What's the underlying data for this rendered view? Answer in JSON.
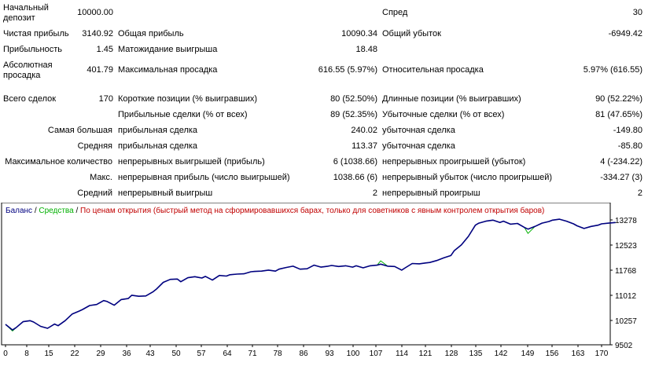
{
  "report": {
    "rows": [
      {
        "c1_label": "Начальный\nдепозит",
        "c1_value": "10000.00",
        "c2_label": "",
        "c2_value": "",
        "c3_label": "Спред",
        "c3_value": "30"
      },
      {
        "c1_label": "Чистая прибыль",
        "c1_value": "3140.92",
        "c2_label": "Общая прибыль",
        "c2_value": "10090.34",
        "c3_label": "Общий убыток",
        "c3_value": "-6949.42"
      },
      {
        "c1_label": "Прибыльность",
        "c1_value": "1.45",
        "c2_label": "Матожидание выигрыша",
        "c2_value": "18.48",
        "c3_label": "",
        "c3_value": ""
      },
      {
        "c1_label": "Абсолютная\nпросадка",
        "c1_value": "401.79",
        "c2_label": "Максимальная просадка",
        "c2_value": "616.55 (5.97%)",
        "c3_label": "Относительная просадка",
        "c3_value": "5.97% (616.55)"
      },
      {
        "c1_label": "Всего сделок",
        "c1_value": "170",
        "c2_label": "Короткие позиции (% выигравших)",
        "c2_value": "80 (52.50%)",
        "c3_label": "Длинные позиции (% выигравших)",
        "c3_value": "90 (52.22%)"
      },
      {
        "c1_label": "",
        "c1_value": "",
        "c2_label": "Прибыльные сделки (% от всех)",
        "c2_value": "89 (52.35%)",
        "c3_label": "Убыточные сделки (% от всех)",
        "c3_value": "81 (47.65%)"
      },
      {
        "c1_label": "Самая большая",
        "c1_value": "",
        "c2_label": "прибыльная сделка",
        "c2_value": "240.02",
        "c3_label": "убыточная сделка",
        "c3_value": "-149.80"
      },
      {
        "c1_label": "Средняя",
        "c1_value": "",
        "c2_label": "прибыльная сделка",
        "c2_value": "113.37",
        "c3_label": "убыточная сделка",
        "c3_value": "-85.80"
      },
      {
        "c1_label": "Максимальное количество",
        "c1_value": "",
        "c2_label": "непрерывных выигрышей (прибыль)",
        "c2_value": "6 (1038.66)",
        "c3_label": "непрерывных проигрышей (убыток)",
        "c3_value": "4 (-234.22)"
      },
      {
        "c1_label": "Макс.",
        "c1_value": "",
        "c2_label": "непрерывная прибыль (число выигрышей)",
        "c2_value": "1038.66 (6)",
        "c3_label": "непрерывный убыток (число проигрышей)",
        "c3_value": "-334.27 (3)"
      },
      {
        "c1_label": "Средний",
        "c1_value": "",
        "c2_label": "непрерывный выигрыш",
        "c2_value": "2",
        "c3_label": "непрерывный проигрыш",
        "c3_value": "2"
      }
    ]
  },
  "chart_legend": {
    "balance": "Баланс",
    "sep1": " / ",
    "equity": "Средства",
    "sep2": " / ",
    "method": "По ценам открытия (быстрый метод на сформировавшихся барах, только для советников с явным контролем открытия баров)"
  },
  "colors": {
    "balance": "#000080",
    "equity": "#00b000",
    "method": "#c00000",
    "axis": "#000000"
  },
  "chart_data": {
    "type": "line",
    "x_ticks": [
      "0",
      "8",
      "15",
      "22",
      "29",
      "36",
      "43",
      "50",
      "57",
      "64",
      "71",
      "78",
      "86",
      "93",
      "100",
      "107",
      "114",
      "121",
      "128",
      "135",
      "142",
      "149",
      "156",
      "163",
      "170"
    ],
    "y_ticks": [
      "13278",
      "12523",
      "11768",
      "11012",
      "10257",
      "9502"
    ],
    "ylim": [
      9502,
      13278
    ],
    "xlim": [
      0,
      176
    ],
    "series": [
      {
        "name": "Баланс",
        "x": [
          0,
          2,
          3,
          5,
          7,
          8,
          10,
          12,
          14,
          15,
          17,
          19,
          21,
          22,
          24,
          26,
          28,
          29,
          31,
          33,
          35,
          36,
          38,
          40,
          42,
          43,
          45,
          47,
          49,
          50,
          52,
          54,
          56,
          57,
          59,
          61,
          63,
          64,
          66,
          68,
          70,
          71,
          73,
          75,
          77,
          78,
          80,
          82,
          84,
          86,
          88,
          90,
          92,
          93,
          95,
          97,
          99,
          100,
          102,
          104,
          106,
          107,
          109,
          111,
          113,
          114,
          116,
          118,
          120,
          121,
          123,
          125,
          127,
          128,
          130,
          132,
          134,
          135,
          137,
          139,
          141,
          142,
          144,
          146,
          148,
          149,
          151,
          153,
          155,
          156,
          158,
          160,
          162,
          163,
          165,
          167,
          169,
          170,
          172,
          174
        ],
        "y": [
          10120,
          9950,
          10020,
          10200,
          10230,
          10190,
          10060,
          10000,
          10130,
          10080,
          10230,
          10430,
          10520,
          10570,
          10690,
          10720,
          10840,
          10810,
          10700,
          10870,
          10900,
          11000,
          10970,
          10980,
          11100,
          11180,
          11390,
          11480,
          11490,
          11410,
          11530,
          11560,
          11520,
          11570,
          11460,
          11600,
          11580,
          11620,
          11640,
          11650,
          11710,
          11720,
          11730,
          11760,
          11730,
          11790,
          11840,
          11880,
          11790,
          11800,
          11910,
          11850,
          11880,
          11900,
          11870,
          11890,
          11850,
          11890,
          11830,
          11890,
          11910,
          11940,
          11880,
          11870,
          11760,
          11830,
          11960,
          11950,
          11980,
          11990,
          12050,
          12130,
          12200,
          12350,
          12520,
          12780,
          13120,
          13180,
          13240,
          13270,
          13200,
          13240,
          13150,
          13170,
          13050,
          13000,
          13080,
          13180,
          13230,
          13270,
          13300,
          13240,
          13160,
          13100,
          13020,
          13080,
          13120,
          13160,
          13180,
          13200
        ]
      },
      {
        "name": "Средства",
        "x": [
          0,
          2,
          3,
          5,
          7,
          8,
          10,
          12,
          14,
          15,
          17,
          19,
          21,
          22,
          24,
          26,
          28,
          29,
          31,
          33,
          35,
          36,
          38,
          40,
          42,
          43,
          45,
          47,
          49,
          50,
          52,
          54,
          56,
          57,
          59,
          61,
          63,
          64,
          66,
          68,
          70,
          71,
          73,
          75,
          77,
          78,
          80,
          82,
          84,
          86,
          88,
          90,
          92,
          93,
          95,
          97,
          99,
          100,
          102,
          104,
          106,
          107,
          109,
          111,
          113,
          114,
          116,
          118,
          120,
          121,
          123,
          125,
          127,
          128,
          130,
          132,
          134,
          135,
          137,
          139,
          141,
          142,
          144,
          146,
          148,
          149,
          151,
          153,
          155,
          156,
          158,
          160,
          162,
          163,
          165,
          167,
          169,
          170,
          172,
          174
        ],
        "y": [
          10120,
          9920,
          10020,
          10200,
          10230,
          10190,
          10060,
          10000,
          10130,
          10080,
          10230,
          10430,
          10520,
          10570,
          10690,
          10720,
          10840,
          10810,
          10700,
          10870,
          10900,
          11000,
          10970,
          10980,
          11100,
          11180,
          11390,
          11480,
          11490,
          11410,
          11530,
          11560,
          11520,
          11570,
          11460,
          11600,
          11580,
          11620,
          11640,
          11650,
          11710,
          11720,
          11730,
          11760,
          11730,
          11790,
          11840,
          11880,
          11790,
          11800,
          11910,
          11850,
          11880,
          11900,
          11870,
          11890,
          11850,
          11890,
          11830,
          11890,
          11910,
          12040,
          11880,
          11870,
          11760,
          11830,
          11960,
          11950,
          11980,
          11990,
          12050,
          12130,
          12200,
          12350,
          12520,
          12780,
          13120,
          13180,
          13240,
          13270,
          13200,
          13240,
          13150,
          13170,
          13050,
          12870,
          13080,
          13180,
          13230,
          13270,
          13300,
          13240,
          13160,
          13100,
          13020,
          13080,
          13120,
          13160,
          13180,
          13200
        ]
      }
    ],
    "grid": false
  }
}
